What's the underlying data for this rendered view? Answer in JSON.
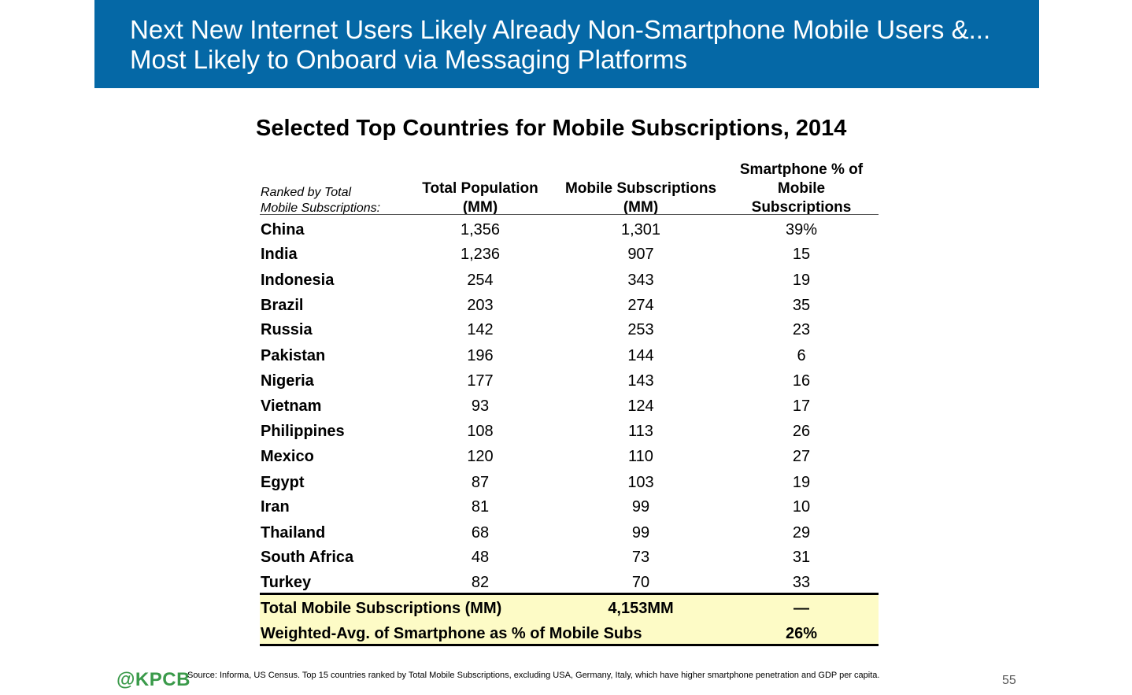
{
  "header": {
    "line1": "Next New Internet Users Likely Already Non-Smartphone Mobile Users &...",
    "line2": "Most Likely to Onboard via Messaging Platforms"
  },
  "table": {
    "title": "Selected Top Countries for Mobile Subscriptions, 2014",
    "rank_note_line1": "Ranked by Total",
    "rank_note_line2": "Mobile Subscriptions:",
    "col1_line1": "Total Population",
    "col1_line2": "(MM)",
    "col2_line1": "Mobile Subscriptions",
    "col2_line2": "(MM)",
    "col3_line1": "Smartphone % of",
    "col3_line2": "Mobile",
    "col3_line3": "Subscriptions",
    "rows": [
      {
        "country": "China",
        "population": "1,356",
        "subscriptions": "1,301",
        "smartphone_pct": "39%"
      },
      {
        "country": "India",
        "population": "1,236",
        "subscriptions": "907",
        "smartphone_pct": "15"
      },
      {
        "country": "Indonesia",
        "population": "254",
        "subscriptions": "343",
        "smartphone_pct": "19"
      },
      {
        "country": "Brazil",
        "population": "203",
        "subscriptions": "274",
        "smartphone_pct": "35"
      },
      {
        "country": "Russia",
        "population": "142",
        "subscriptions": "253",
        "smartphone_pct": "23"
      },
      {
        "country": "Pakistan",
        "population": "196",
        "subscriptions": "144",
        "smartphone_pct": "6"
      },
      {
        "country": "Nigeria",
        "population": "177",
        "subscriptions": "143",
        "smartphone_pct": "16"
      },
      {
        "country": "Vietnam",
        "population": "93",
        "subscriptions": "124",
        "smartphone_pct": "17"
      },
      {
        "country": "Philippines",
        "population": "108",
        "subscriptions": "113",
        "smartphone_pct": "26"
      },
      {
        "country": "Mexico",
        "population": "120",
        "subscriptions": "110",
        "smartphone_pct": "27"
      },
      {
        "country": "Egypt",
        "population": "87",
        "subscriptions": "103",
        "smartphone_pct": "19"
      },
      {
        "country": "Iran",
        "population": "81",
        "subscriptions": "99",
        "smartphone_pct": "10"
      },
      {
        "country": "Thailand",
        "population": "68",
        "subscriptions": "99",
        "smartphone_pct": "29"
      },
      {
        "country": "South Africa",
        "population": "48",
        "subscriptions": "73",
        "smartphone_pct": "31"
      },
      {
        "country": "Turkey",
        "population": "82",
        "subscriptions": "70",
        "smartphone_pct": "33"
      }
    ],
    "totals": {
      "total_label": "Total Mobile Subscriptions (MM)",
      "total_value": "4,153MM",
      "total_pct": "—",
      "avg_label": "Weighted-Avg. of Smartphone as % of Mobile Subs",
      "avg_value": "26%"
    },
    "highlight_color": "#fdfbc6"
  },
  "footer": {
    "logo": "@KPCB",
    "source": "Source: Informa, US Census. Top 15 countries ranked by Total Mobile Subscriptions, excluding USA, Germany, Italy, which have higher smartphone penetration and GDP per capita.",
    "page_number": "55"
  },
  "colors": {
    "header_bg": "#0568a6",
    "logo_green": "#3a9a4a"
  }
}
